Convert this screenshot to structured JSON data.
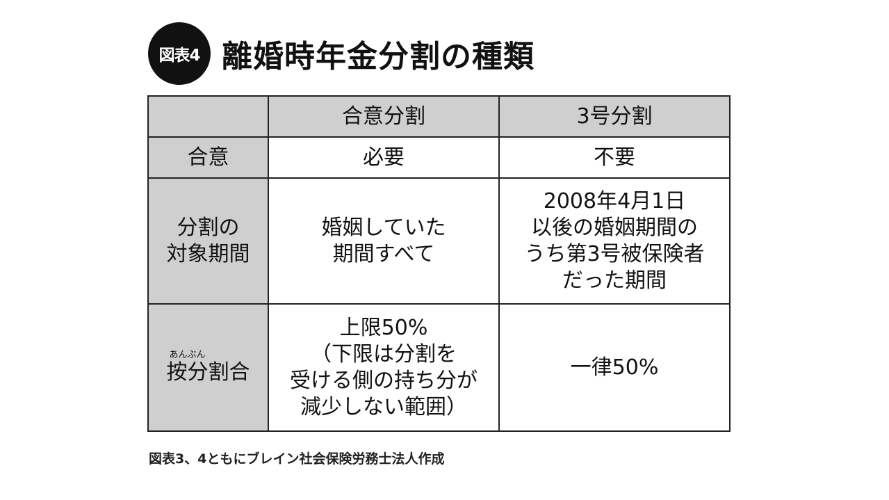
{
  "badge": "図表4",
  "title": "離婚時年金分割の種類",
  "table": {
    "header": {
      "blank": "",
      "col1": "合意分割",
      "col2": "3号分割"
    },
    "row1": {
      "label": "合意",
      "col1": "必要",
      "col2": "不要"
    },
    "row2": {
      "label_lines": [
        "分割の",
        "対象期間"
      ],
      "col1_lines": [
        "婚姻していた",
        "期間すべて"
      ],
      "col2_lines": [
        "2008年4月1日",
        "以後の婚姻期間の",
        "うち第3号被保険者",
        "だった期間"
      ]
    },
    "row3": {
      "label_ruby": "あんぶん",
      "label_base": "按分",
      "label_rest": "割合",
      "col1_lines": [
        "上限50%",
        "（下限は分割を",
        "受ける側の持ち分が",
        "減少しない範囲）"
      ],
      "col2": "一律50%"
    }
  },
  "caption": "図表3、4ともにブレイン社会保険労務士法人作成"
}
